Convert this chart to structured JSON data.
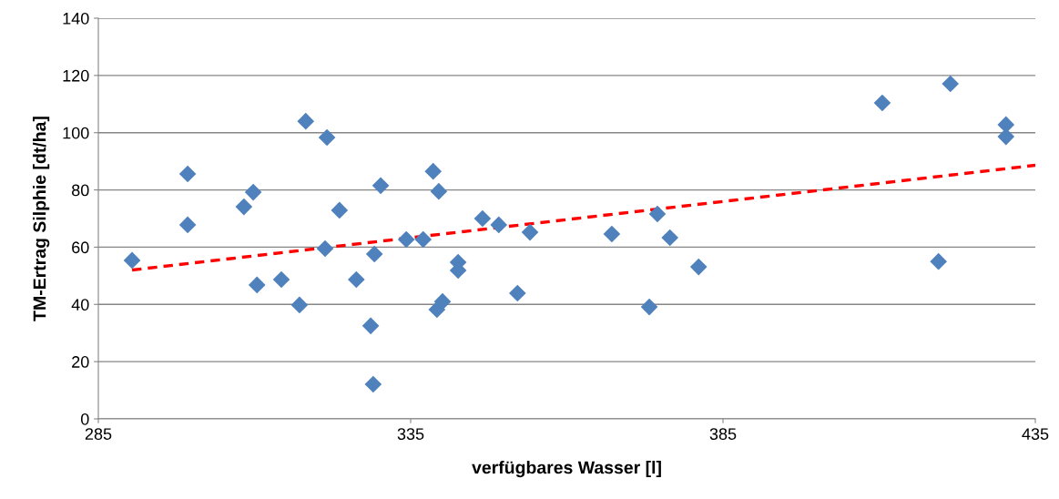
{
  "chart_data": {
    "type": "scatter",
    "xlabel": "verfügbares Wasser [l]",
    "ylabel": "TM-Ertrag Silphie [dt/ha]",
    "xlim": [
      285,
      435
    ],
    "xticks": [
      285,
      335,
      385,
      435
    ],
    "ylim": [
      0,
      140
    ],
    "yticks": [
      0,
      20,
      40,
      60,
      80,
      100,
      120,
      140
    ],
    "grid": "y",
    "series": [
      {
        "marker": "diamond",
        "color": "#4f81bd",
        "x": [
          290.4,
          299.3,
          299.3,
          308.3,
          309.8,
          310.4,
          314.3,
          317.2,
          318.2,
          321.6,
          321.3,
          323.6,
          326.3,
          328.6,
          329.0,
          329.2,
          330.2,
          334.3,
          337.0,
          338.6,
          339.2,
          339.5,
          340.1,
          342.6,
          342.6,
          346.5,
          349.1,
          352.1,
          354.1,
          367.2,
          373.2,
          374.5,
          376.5,
          381.1,
          410.5,
          419.5,
          421.4,
          430.3,
          430.3
        ],
        "values": [
          55.4,
          67.8,
          85.6,
          74.1,
          79.2,
          46.8,
          48.7,
          39.8,
          104.0,
          98.3,
          59.5,
          72.9,
          48.7,
          32.5,
          12.1,
          57.6,
          81.5,
          62.7,
          62.7,
          86.5,
          38.2,
          79.5,
          41.0,
          54.7,
          51.9,
          70.0,
          67.8,
          43.9,
          65.2,
          64.6,
          39.1,
          71.6,
          63.3,
          53.1,
          110.4,
          55.0,
          117.1,
          102.8,
          98.6
        ]
      },
      {
        "type": "line",
        "marker": "none",
        "color": "#ff0000",
        "line_style": "dashed",
        "x": [
          290.4,
          435
        ],
        "values": [
          52.0,
          88.6
        ]
      }
    ]
  }
}
